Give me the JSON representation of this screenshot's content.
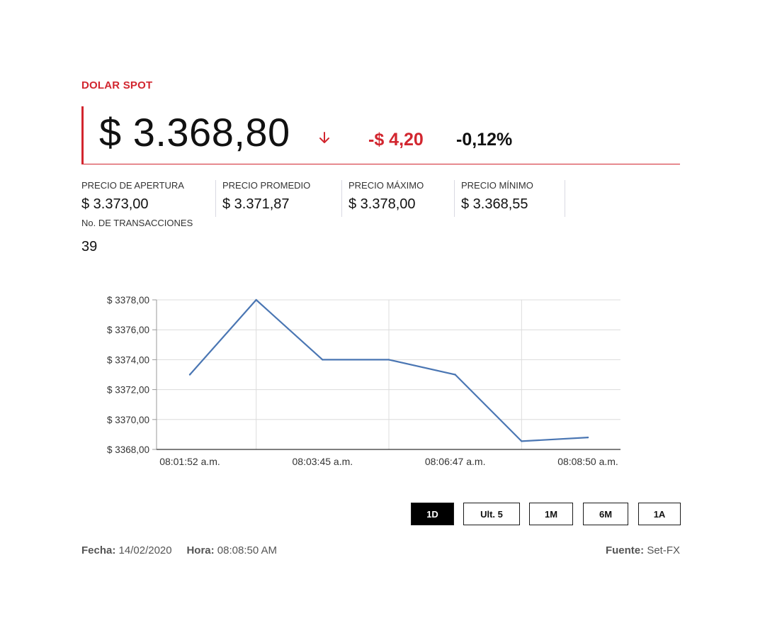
{
  "header": {
    "title": "DOLAR SPOT",
    "price": "$ 3.368,80",
    "change": "-$ 4,20",
    "change_pct": "-0,12%",
    "trend_icon": "arrow-down-icon",
    "accent_color": "#d2262f"
  },
  "stats": [
    {
      "label": "PRECIO DE APERTURA",
      "value": "$ 3.373,00"
    },
    {
      "label": "PRECIO PROMEDIO",
      "value": "$ 3.371,87"
    },
    {
      "label": "PRECIO MÁXIMO",
      "value": "$ 3.378,00"
    },
    {
      "label": "PRECIO MÍNIMO",
      "value": "$ 3.368,55"
    }
  ],
  "transactions": {
    "label": "No. DE TRANSACCIONES",
    "value": "39"
  },
  "chart_data": {
    "type": "line",
    "x": [
      "08:01:52 a.m.",
      "",
      "08:03:45 a.m.",
      "",
      "08:06:47 a.m.",
      "",
      "08:08:50 a.m."
    ],
    "series": [
      {
        "values": [
          3373.0,
          3378.0,
          3374.0,
          3374.0,
          3373.0,
          3368.55,
          3368.8
        ],
        "color": "#4a76b3"
      }
    ],
    "x_tick_labels": [
      "08:01:52 a.m.",
      "08:03:45 a.m.",
      "08:06:47 a.m.",
      "08:08:50 a.m."
    ],
    "y_tick_labels": [
      "$ 3368,00",
      "$ 3370,00",
      "$ 3372,00",
      "$ 3374,00",
      "$ 3376,00",
      "$ 3378,00"
    ],
    "y_ticks": [
      3368,
      3370,
      3372,
      3374,
      3376,
      3378
    ],
    "ylim": [
      3368,
      3378
    ],
    "grid": true
  },
  "range_buttons": [
    {
      "label": "1D",
      "active": true
    },
    {
      "label": "Ult. 5",
      "active": false
    },
    {
      "label": "1M",
      "active": false
    },
    {
      "label": "6M",
      "active": false
    },
    {
      "label": "1A",
      "active": false
    }
  ],
  "footer": {
    "fecha_label": "Fecha:",
    "fecha_value": "14/02/2020",
    "hora_label": "Hora:",
    "hora_value": "08:08:50 AM",
    "fuente_label": "Fuente:",
    "fuente_value": "Set-FX"
  }
}
